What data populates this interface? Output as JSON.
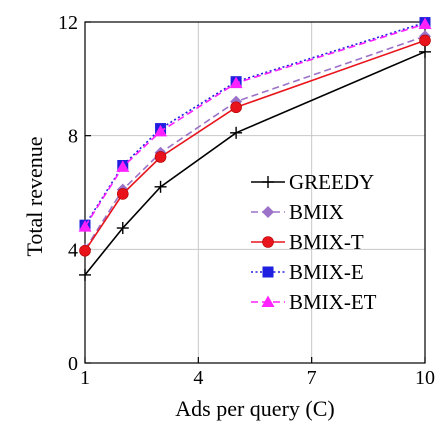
{
  "chart_data": {
    "type": "line",
    "title": "",
    "xlabel": "Ads per query (C)",
    "ylabel": "Total revenue",
    "x": [
      1,
      2,
      3,
      5,
      10
    ],
    "xlim": [
      1,
      10
    ],
    "ylim": [
      0,
      12
    ],
    "xticks": [
      "1",
      "4",
      "7",
      "10"
    ],
    "xtick_values": [
      1,
      4,
      7,
      10
    ],
    "yticks": [
      "0",
      "4",
      "8",
      "12"
    ],
    "ytick_values": [
      0,
      4,
      8,
      12
    ],
    "grid": true,
    "legend_position": "lower-right",
    "series": [
      {
        "name": "GREEDY",
        "values": [
          3.1,
          4.75,
          6.2,
          8.1,
          10.95
        ],
        "color": "#000000",
        "marker": "plus",
        "dash": "solid"
      },
      {
        "name": "BMIX",
        "values": [
          4.0,
          6.1,
          7.4,
          9.2,
          11.5
        ],
        "color": "#9b72c8",
        "marker": "diamond",
        "dash": "dashed"
      },
      {
        "name": "BMIX-T",
        "values": [
          3.95,
          5.95,
          7.25,
          9.0,
          11.35
        ],
        "color": "#e8131b",
        "marker": "circle",
        "dash": "solid"
      },
      {
        "name": "BMIX-E",
        "values": [
          4.85,
          6.95,
          8.25,
          9.9,
          11.98
        ],
        "color": "#1f1fe0",
        "marker": "square",
        "dash": "dotted"
      },
      {
        "name": "BMIX-ET",
        "values": [
          4.8,
          6.9,
          8.15,
          9.85,
          11.93
        ],
        "color": "#ff22ff",
        "marker": "triangle",
        "dash": "dashed"
      }
    ]
  }
}
